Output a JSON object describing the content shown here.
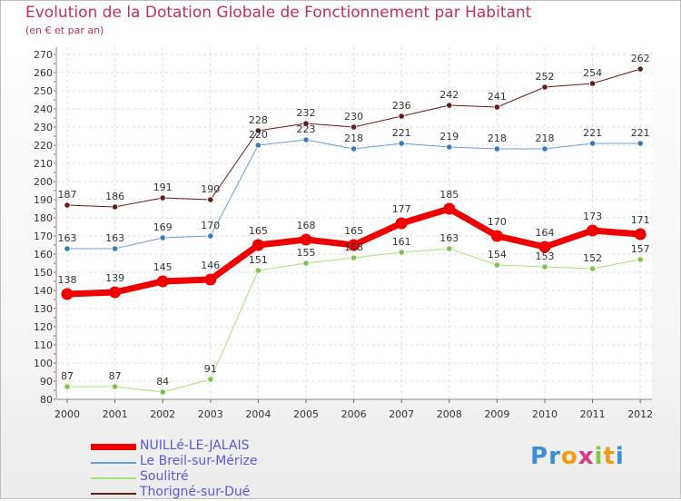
{
  "header": {
    "title": "Evolution de la Dotation Globale de Fonctionnement par Habitant",
    "subtitle": "(en € et par an)"
  },
  "logo": {
    "letters": [
      "P",
      "r",
      "o",
      "x",
      "i",
      "t",
      "i"
    ],
    "colors": [
      "#3a8fd6",
      "#3a8fd6",
      "#f39c12",
      "#d83a8a",
      "#8bc34a",
      "#f39c12",
      "#3a8fd6"
    ]
  },
  "chart_data": {
    "type": "line",
    "title": "Evolution de la Dotation Globale de Fonctionnement par Habitant",
    "xlabel": "",
    "ylabel": "(en € et par an)",
    "ylim": [
      80,
      270
    ],
    "yticks": [
      80,
      90,
      100,
      110,
      120,
      130,
      140,
      150,
      160,
      170,
      180,
      190,
      200,
      210,
      220,
      230,
      240,
      250,
      260,
      270
    ],
    "categories": [
      "2000",
      "2001",
      "2002",
      "2003",
      "2004",
      "2005",
      "2006",
      "2007",
      "2008",
      "2009",
      "2010",
      "2011",
      "2012"
    ],
    "grid": true,
    "legend_position": "bottom-left",
    "series": [
      {
        "name": "Thorigné-sur-Dué",
        "color": "#6b1a1a",
        "marker": "#6b1a1a",
        "width": 1,
        "values": [
          187,
          186,
          191,
          190,
          228,
          232,
          230,
          236,
          242,
          241,
          252,
          254,
          262
        ]
      },
      {
        "name": "Le Breil-sur-Mérize",
        "color": "#6a9fd0",
        "marker": "#3a7bbf",
        "width": 1,
        "values": [
          163,
          163,
          169,
          170,
          220,
          223,
          218,
          221,
          219,
          218,
          218,
          221,
          221
        ]
      },
      {
        "name": "Soulitré",
        "color": "#a8e07a",
        "marker": "#7cc44a",
        "width": 1,
        "values": [
          87,
          87,
          84,
          91,
          151,
          155,
          158,
          161,
          163,
          154,
          153,
          152,
          157
        ]
      },
      {
        "name": "NUILLé-LE-JALAIS",
        "color": "#ee0000",
        "marker": "#ee0000",
        "width": 7,
        "values": [
          138,
          139,
          145,
          146,
          165,
          168,
          165,
          177,
          185,
          170,
          164,
          173,
          171
        ]
      }
    ],
    "legend_order": [
      "NUILLé-LE-JALAIS",
      "Le Breil-sur-Mérize",
      "Soulitré",
      "Thorigné-sur-Dué"
    ]
  }
}
